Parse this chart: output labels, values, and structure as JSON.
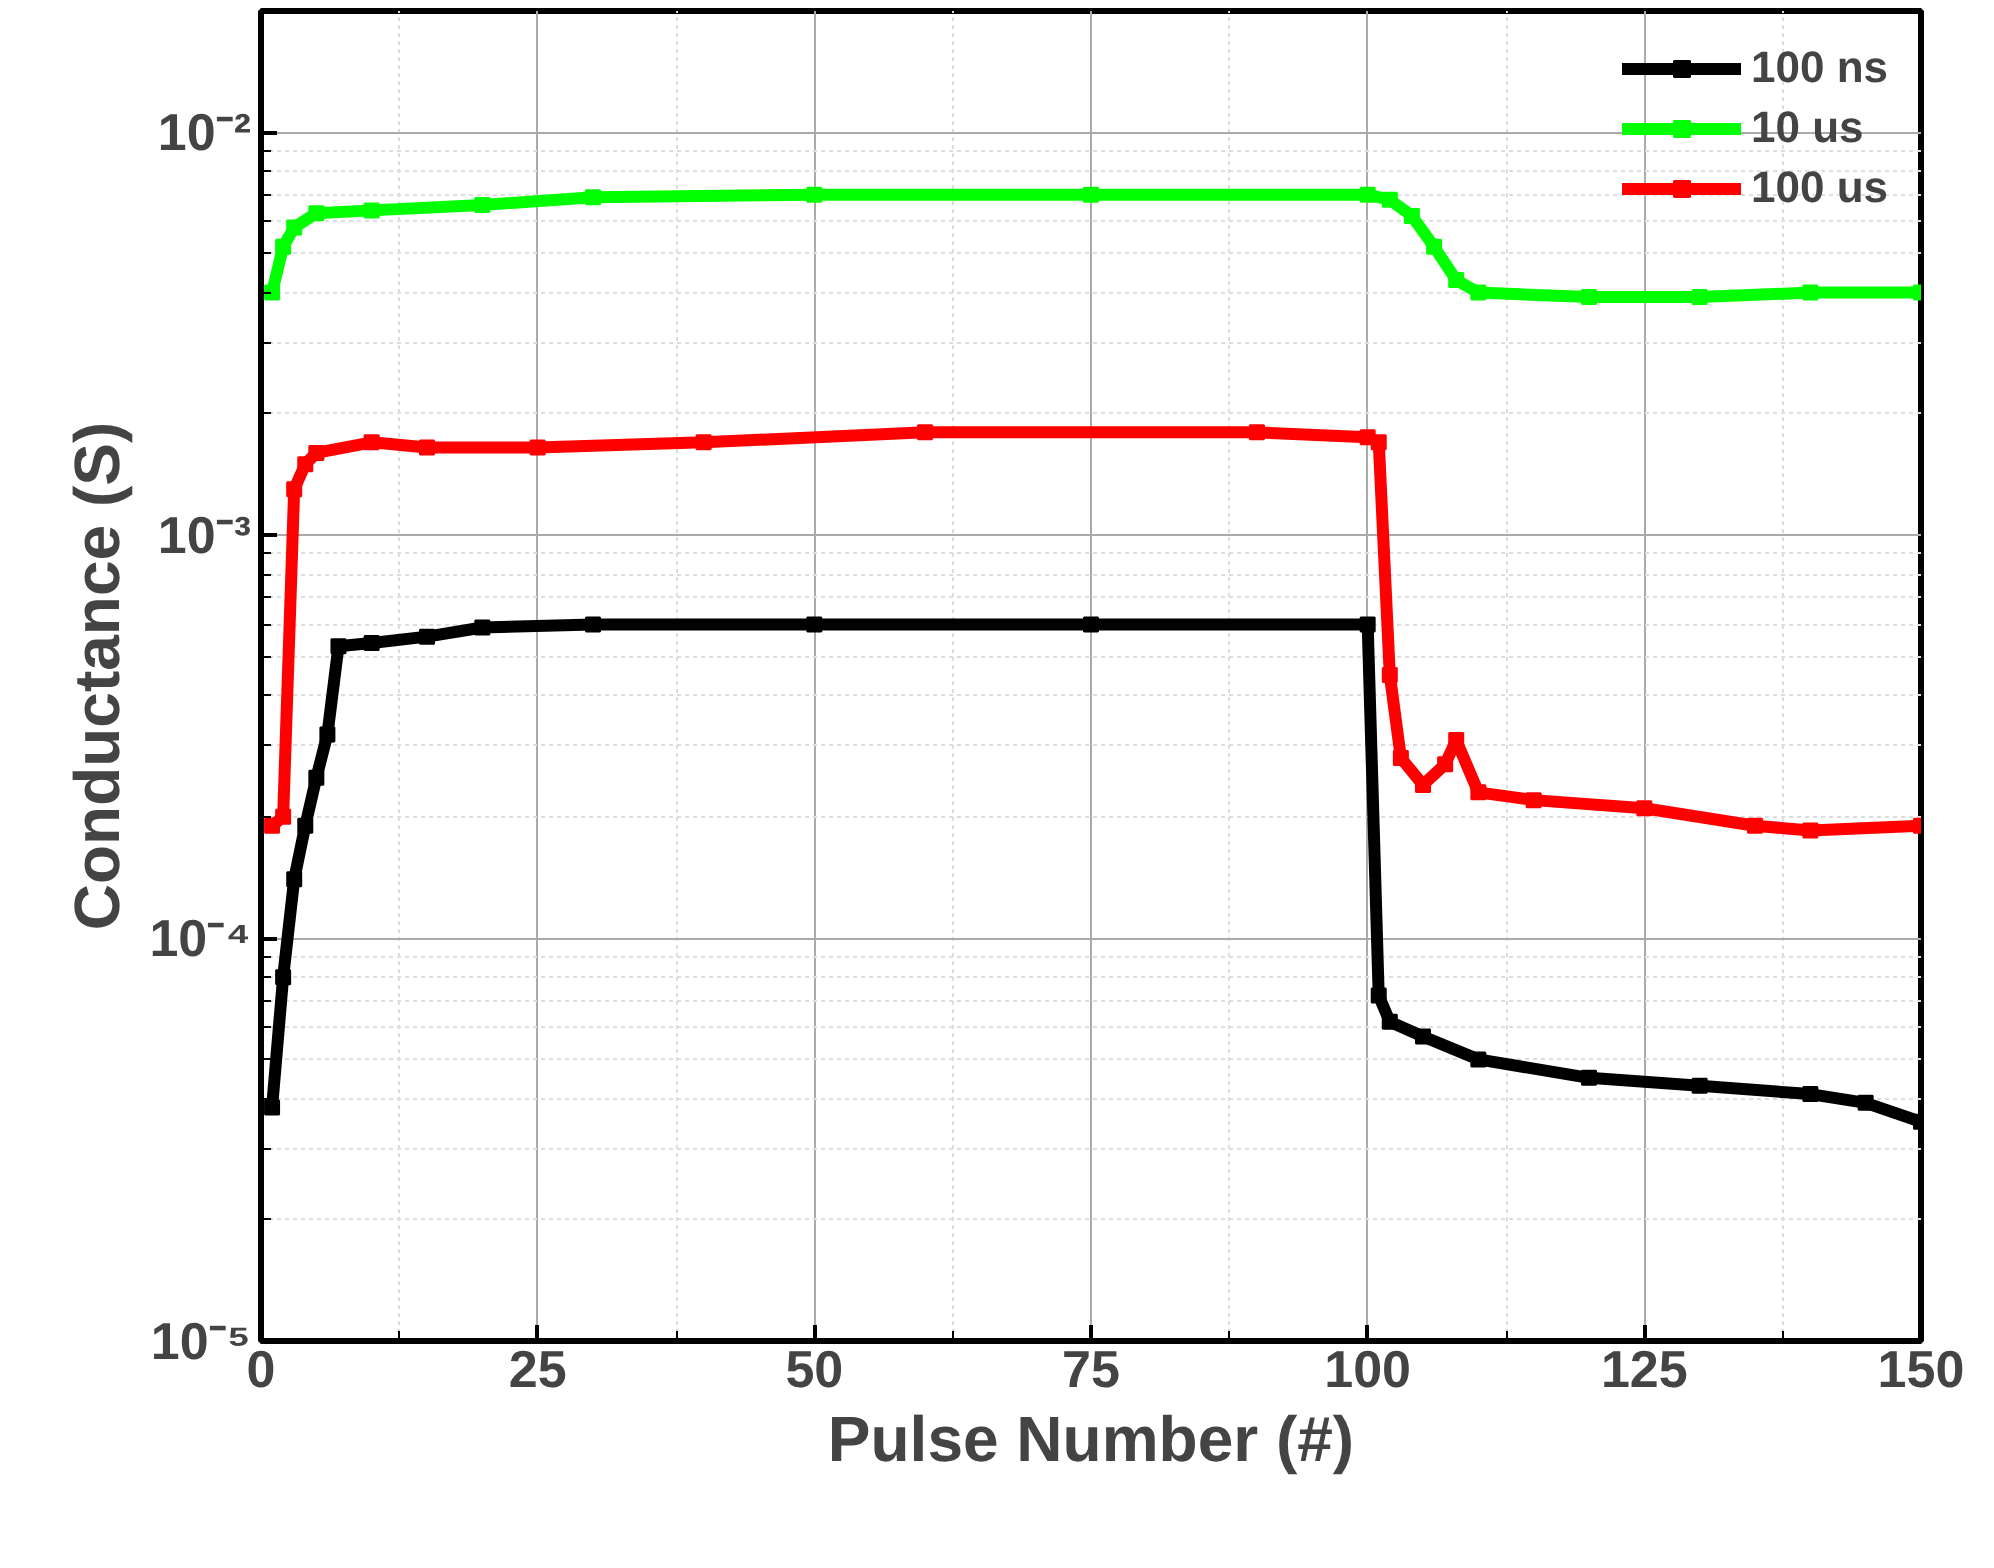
{
  "chart_data": {
    "type": "line",
    "xlabel": "Pulse Number (#)",
    "ylabel": "Conductance (S)",
    "xlim": [
      0,
      150
    ],
    "xticks": [
      0,
      25,
      50,
      75,
      100,
      125,
      150
    ],
    "ylim": [
      1e-05,
      0.02
    ],
    "yticks": [
      {
        "value": 1e-05,
        "label": "10⁻⁵"
      },
      {
        "value": 0.0001,
        "label": "10⁻⁴"
      },
      {
        "value": 0.001,
        "label": "10⁻³"
      },
      {
        "value": 0.01,
        "label": "10⁻²"
      }
    ],
    "log": "y",
    "grid": true,
    "legend": "top right",
    "marker": "square",
    "line_style": "solid",
    "series": [
      {
        "name": "100 ns",
        "color": "#000000",
        "x": [
          1,
          2,
          3,
          4,
          5,
          6,
          7,
          10,
          15,
          20,
          30,
          50,
          75,
          100,
          101,
          102,
          105,
          110,
          120,
          130,
          140,
          145,
          150
        ],
        "values": [
          3.8e-05,
          8e-05,
          0.00014,
          0.00019,
          0.00025,
          0.00032,
          0.00053,
          0.00054,
          0.00056,
          0.00059,
          0.0006,
          0.0006,
          0.0006,
          0.0006,
          7.2e-05,
          6.2e-05,
          5.7e-05,
          5e-05,
          4.5e-05,
          4.3e-05,
          4.1e-05,
          3.9e-05,
          3.5e-05
        ]
      },
      {
        "name": "10 us",
        "color": "#00ff00",
        "x": [
          1,
          2,
          3,
          5,
          10,
          20,
          30,
          50,
          75,
          100,
          102,
          104,
          106,
          108,
          110,
          120,
          130,
          140,
          150
        ],
        "values": [
          0.004,
          0.0052,
          0.0058,
          0.0063,
          0.0064,
          0.0066,
          0.0069,
          0.007,
          0.007,
          0.007,
          0.0068,
          0.0062,
          0.0052,
          0.0043,
          0.004,
          0.0039,
          0.0039,
          0.004,
          0.004
        ]
      },
      {
        "name": "100 us",
        "color": "#ff0000",
        "x": [
          1,
          2,
          3,
          4,
          5,
          10,
          15,
          25,
          40,
          60,
          90,
          100,
          101,
          102,
          103,
          105,
          107,
          108,
          110,
          115,
          125,
          135,
          140,
          150
        ],
        "values": [
          0.00019,
          0.0002,
          0.0013,
          0.0015,
          0.0016,
          0.0017,
          0.00165,
          0.00165,
          0.0017,
          0.0018,
          0.0018,
          0.00175,
          0.0017,
          0.00045,
          0.00028,
          0.00024,
          0.00027,
          0.00031,
          0.00023,
          0.00022,
          0.00021,
          0.00019,
          0.000185,
          0.00019
        ]
      }
    ]
  }
}
